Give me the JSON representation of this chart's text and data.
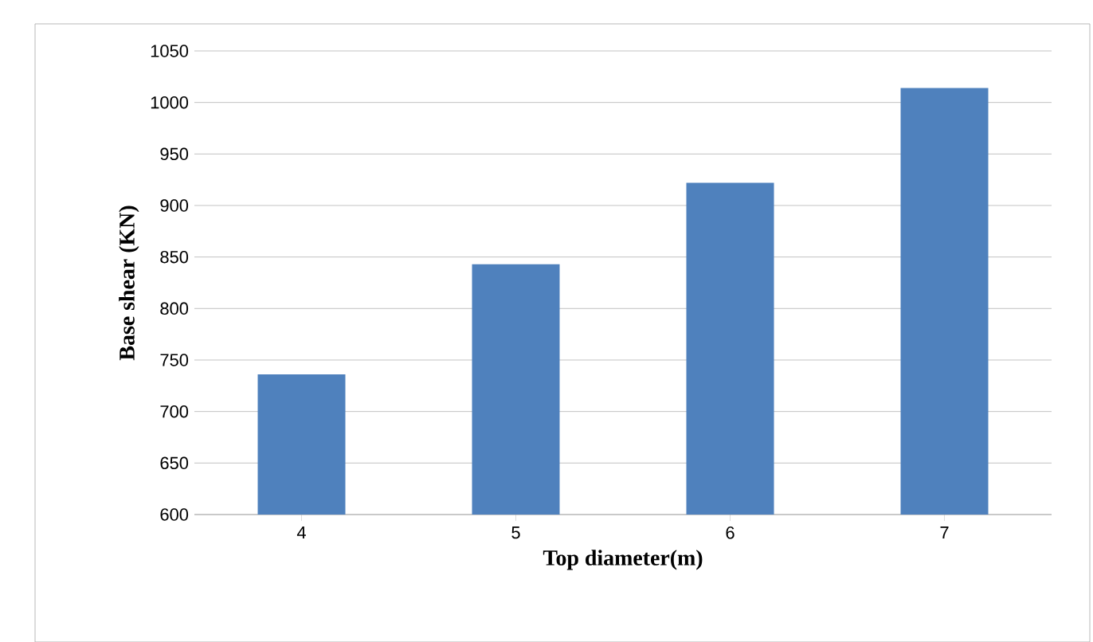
{
  "chart_data": {
    "type": "bar",
    "xlabel": "Top diameter(m)",
    "ylabel": "Base shear (KN)",
    "categories": [
      "4",
      "5",
      "6",
      "7"
    ],
    "values": [
      736,
      843,
      922,
      1014
    ],
    "color": "#4f81bd",
    "ylim": [
      600,
      1050
    ],
    "yticks": [
      600,
      650,
      700,
      750,
      800,
      850,
      900,
      950,
      1000,
      1050
    ],
    "grid": "y"
  }
}
